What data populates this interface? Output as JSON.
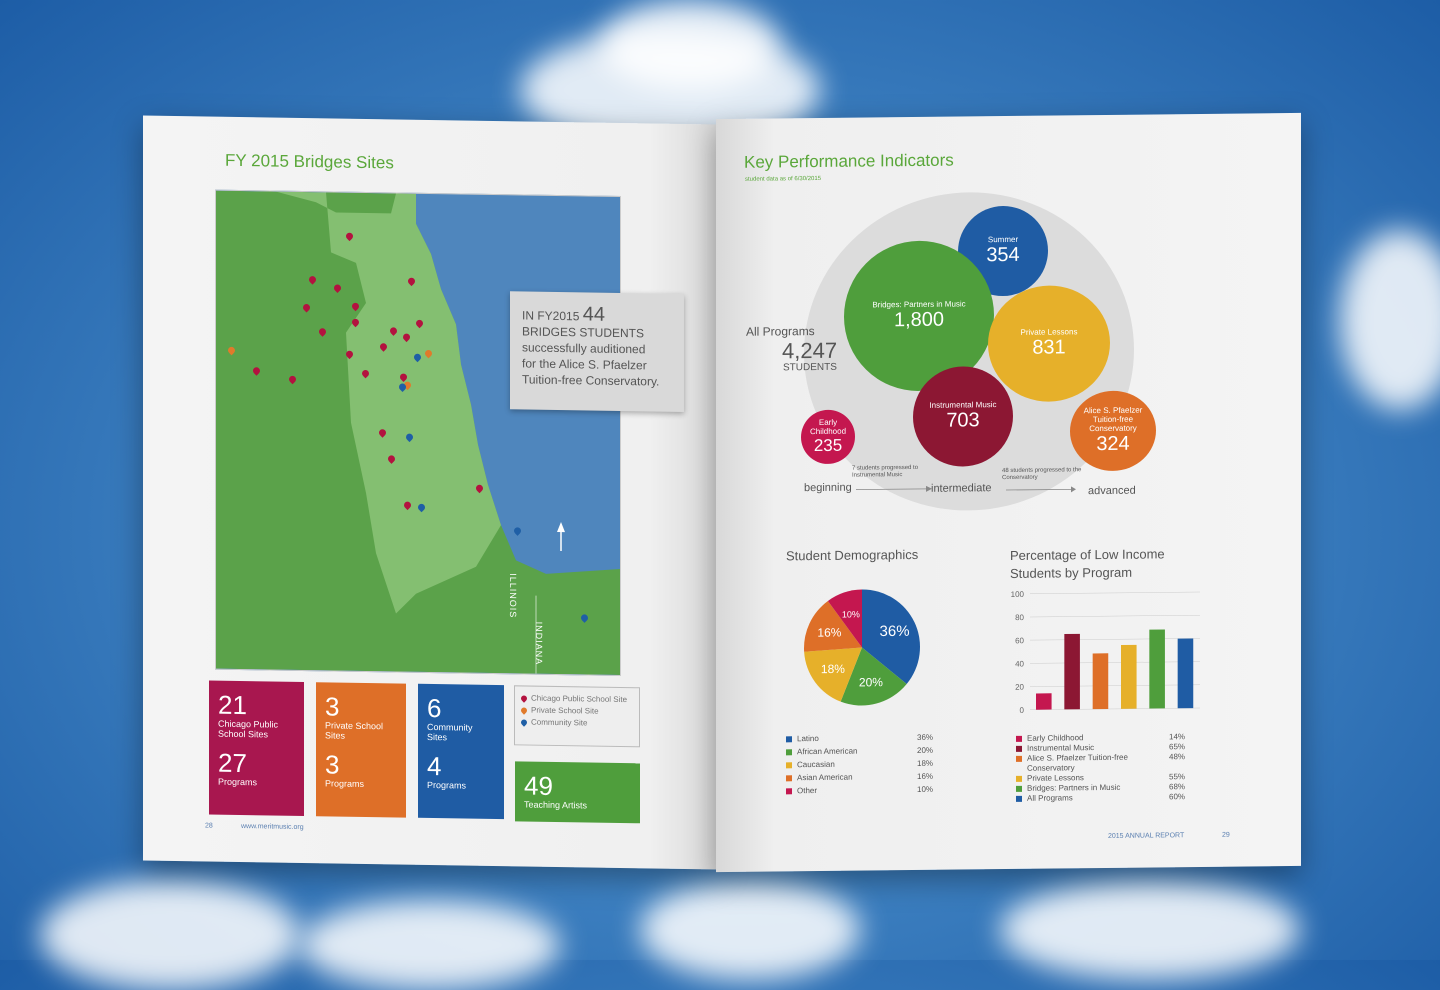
{
  "left_page": {
    "title": "FY 2015 Bridges Sites",
    "map_labels": {
      "illinois": "ILLINOIS",
      "indiana": "INDIANA"
    },
    "callout": {
      "prefix": "IN FY2015",
      "number": "44",
      "line1": "BRIDGES STUDENTS",
      "line2": "successfully auditioned",
      "line3": "for the Alice S. Pfaelzer",
      "line4": "Tuition-free Conservatory."
    },
    "cards": [
      {
        "num": "21",
        "label": "Chicago Public School Sites",
        "num2": "27",
        "label2": "Programs",
        "color": "#a8174f"
      },
      {
        "num": "3",
        "label": "Private School Sites",
        "num2": "3",
        "label2": "Programs",
        "color": "#de6f28"
      },
      {
        "num": "6",
        "label": "Community Sites",
        "num2": "4",
        "label2": "Programs",
        "color": "#1f5ca4"
      }
    ],
    "legend": [
      {
        "label": "Chicago Public School Site",
        "color": "red"
      },
      {
        "label": "Private School Site",
        "color": "orange"
      },
      {
        "label": "Community Site",
        "color": "blue"
      }
    ],
    "teaching": {
      "num": "49",
      "label": "Teaching Artists",
      "color": "#4f9e3c"
    },
    "page_number": "28",
    "url": "www.meritmusic.org"
  },
  "right_page": {
    "title": "Key Performance Indicators",
    "subtitle": "student data as of 6/30/2015",
    "all_programs": {
      "label": "All Programs",
      "value": "4,247",
      "unit": "STUDENTS"
    },
    "bubbles": [
      {
        "label": "Summer",
        "value": "354",
        "color": "#1f5ca4"
      },
      {
        "label": "Bridges: Partners in Music",
        "value": "1,800",
        "color": "#4f9e3c"
      },
      {
        "label": "Private Lessons",
        "value": "831",
        "color": "#e6b02a"
      },
      {
        "label": "Instrumental Music",
        "value": "703",
        "color": "#8c1733"
      },
      {
        "label": "Early Childhood",
        "value": "235",
        "color": "#c4174f"
      },
      {
        "label": "Alice S. Pfaelzer Tuition-free Conservatory",
        "value": "324",
        "color": "#de6f28"
      }
    ],
    "progression": {
      "beginning": "beginning",
      "intermediate": "intermediate",
      "advanced": "advanced",
      "note1": "7 students progressed to Instrumental Music",
      "note2": "48 students progressed to the Conservatory"
    },
    "demographics_title": "Student Demographics",
    "low_income_title_1": "Percentage of Low Income",
    "low_income_title_2": "Students by Program",
    "footer_report": "2015 ANNUAL REPORT",
    "page_number": "29"
  },
  "chart_data": [
    {
      "type": "pie",
      "title": "Student Demographics",
      "categories": [
        "Latino",
        "African American",
        "Caucasian",
        "Asian American",
        "Other"
      ],
      "values": [
        36,
        20,
        18,
        16,
        10
      ],
      "labels": [
        "36%",
        "20%",
        "18%",
        "16%",
        "10%"
      ],
      "colors": [
        "#1f5ca4",
        "#4f9e3c",
        "#e6b02a",
        "#de6f28",
        "#c4174f"
      ]
    },
    {
      "type": "bar",
      "title": "Percentage of Low Income Students by Program",
      "categories": [
        "Early Childhood",
        "Instrumental Music",
        "Alice S. Pfaelzer Tuition-free Conservatory",
        "Private Lessons",
        "Bridges: Partners in Music",
        "All Programs"
      ],
      "values": [
        14,
        65,
        48,
        55,
        68,
        60
      ],
      "labels": [
        "14%",
        "65%",
        "48%",
        "55%",
        "68%",
        "60%"
      ],
      "colors": [
        "#c4174f",
        "#8c1733",
        "#de6f28",
        "#e6b02a",
        "#4f9e3c",
        "#1f5ca4"
      ],
      "yticks": [
        "100",
        "80",
        "60",
        "40",
        "20",
        "0"
      ],
      "ylim": [
        0,
        100
      ]
    }
  ]
}
